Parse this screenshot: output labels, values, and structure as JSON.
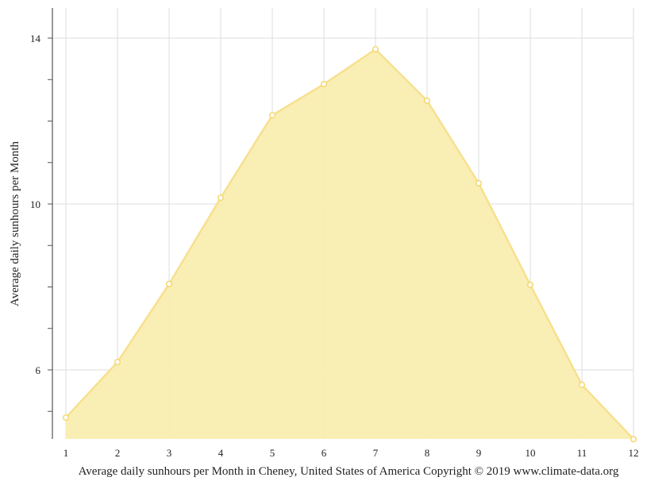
{
  "chart_data": {
    "type": "area",
    "title": "",
    "xlabel": "Average daily sunhours per Month in Cheney, United States of America Copyright © 2019 www.climate-data.org",
    "ylabel": "Average daily sunhours per Month",
    "categories": [
      "1",
      "2",
      "3",
      "4",
      "5",
      "6",
      "7",
      "8",
      "9",
      "10",
      "11",
      "12"
    ],
    "values": [
      4.85,
      6.19,
      8.07,
      10.15,
      12.14,
      12.89,
      13.73,
      12.49,
      10.5,
      8.05,
      5.64,
      4.33
    ],
    "yticks": [
      "6",
      "10",
      "14"
    ],
    "ylim": [
      4.33,
      14.73
    ],
    "grid": true,
    "colors": {
      "fill": "#f9eeb1",
      "line": "#f7e08e",
      "marker": "#f5d76e"
    }
  }
}
